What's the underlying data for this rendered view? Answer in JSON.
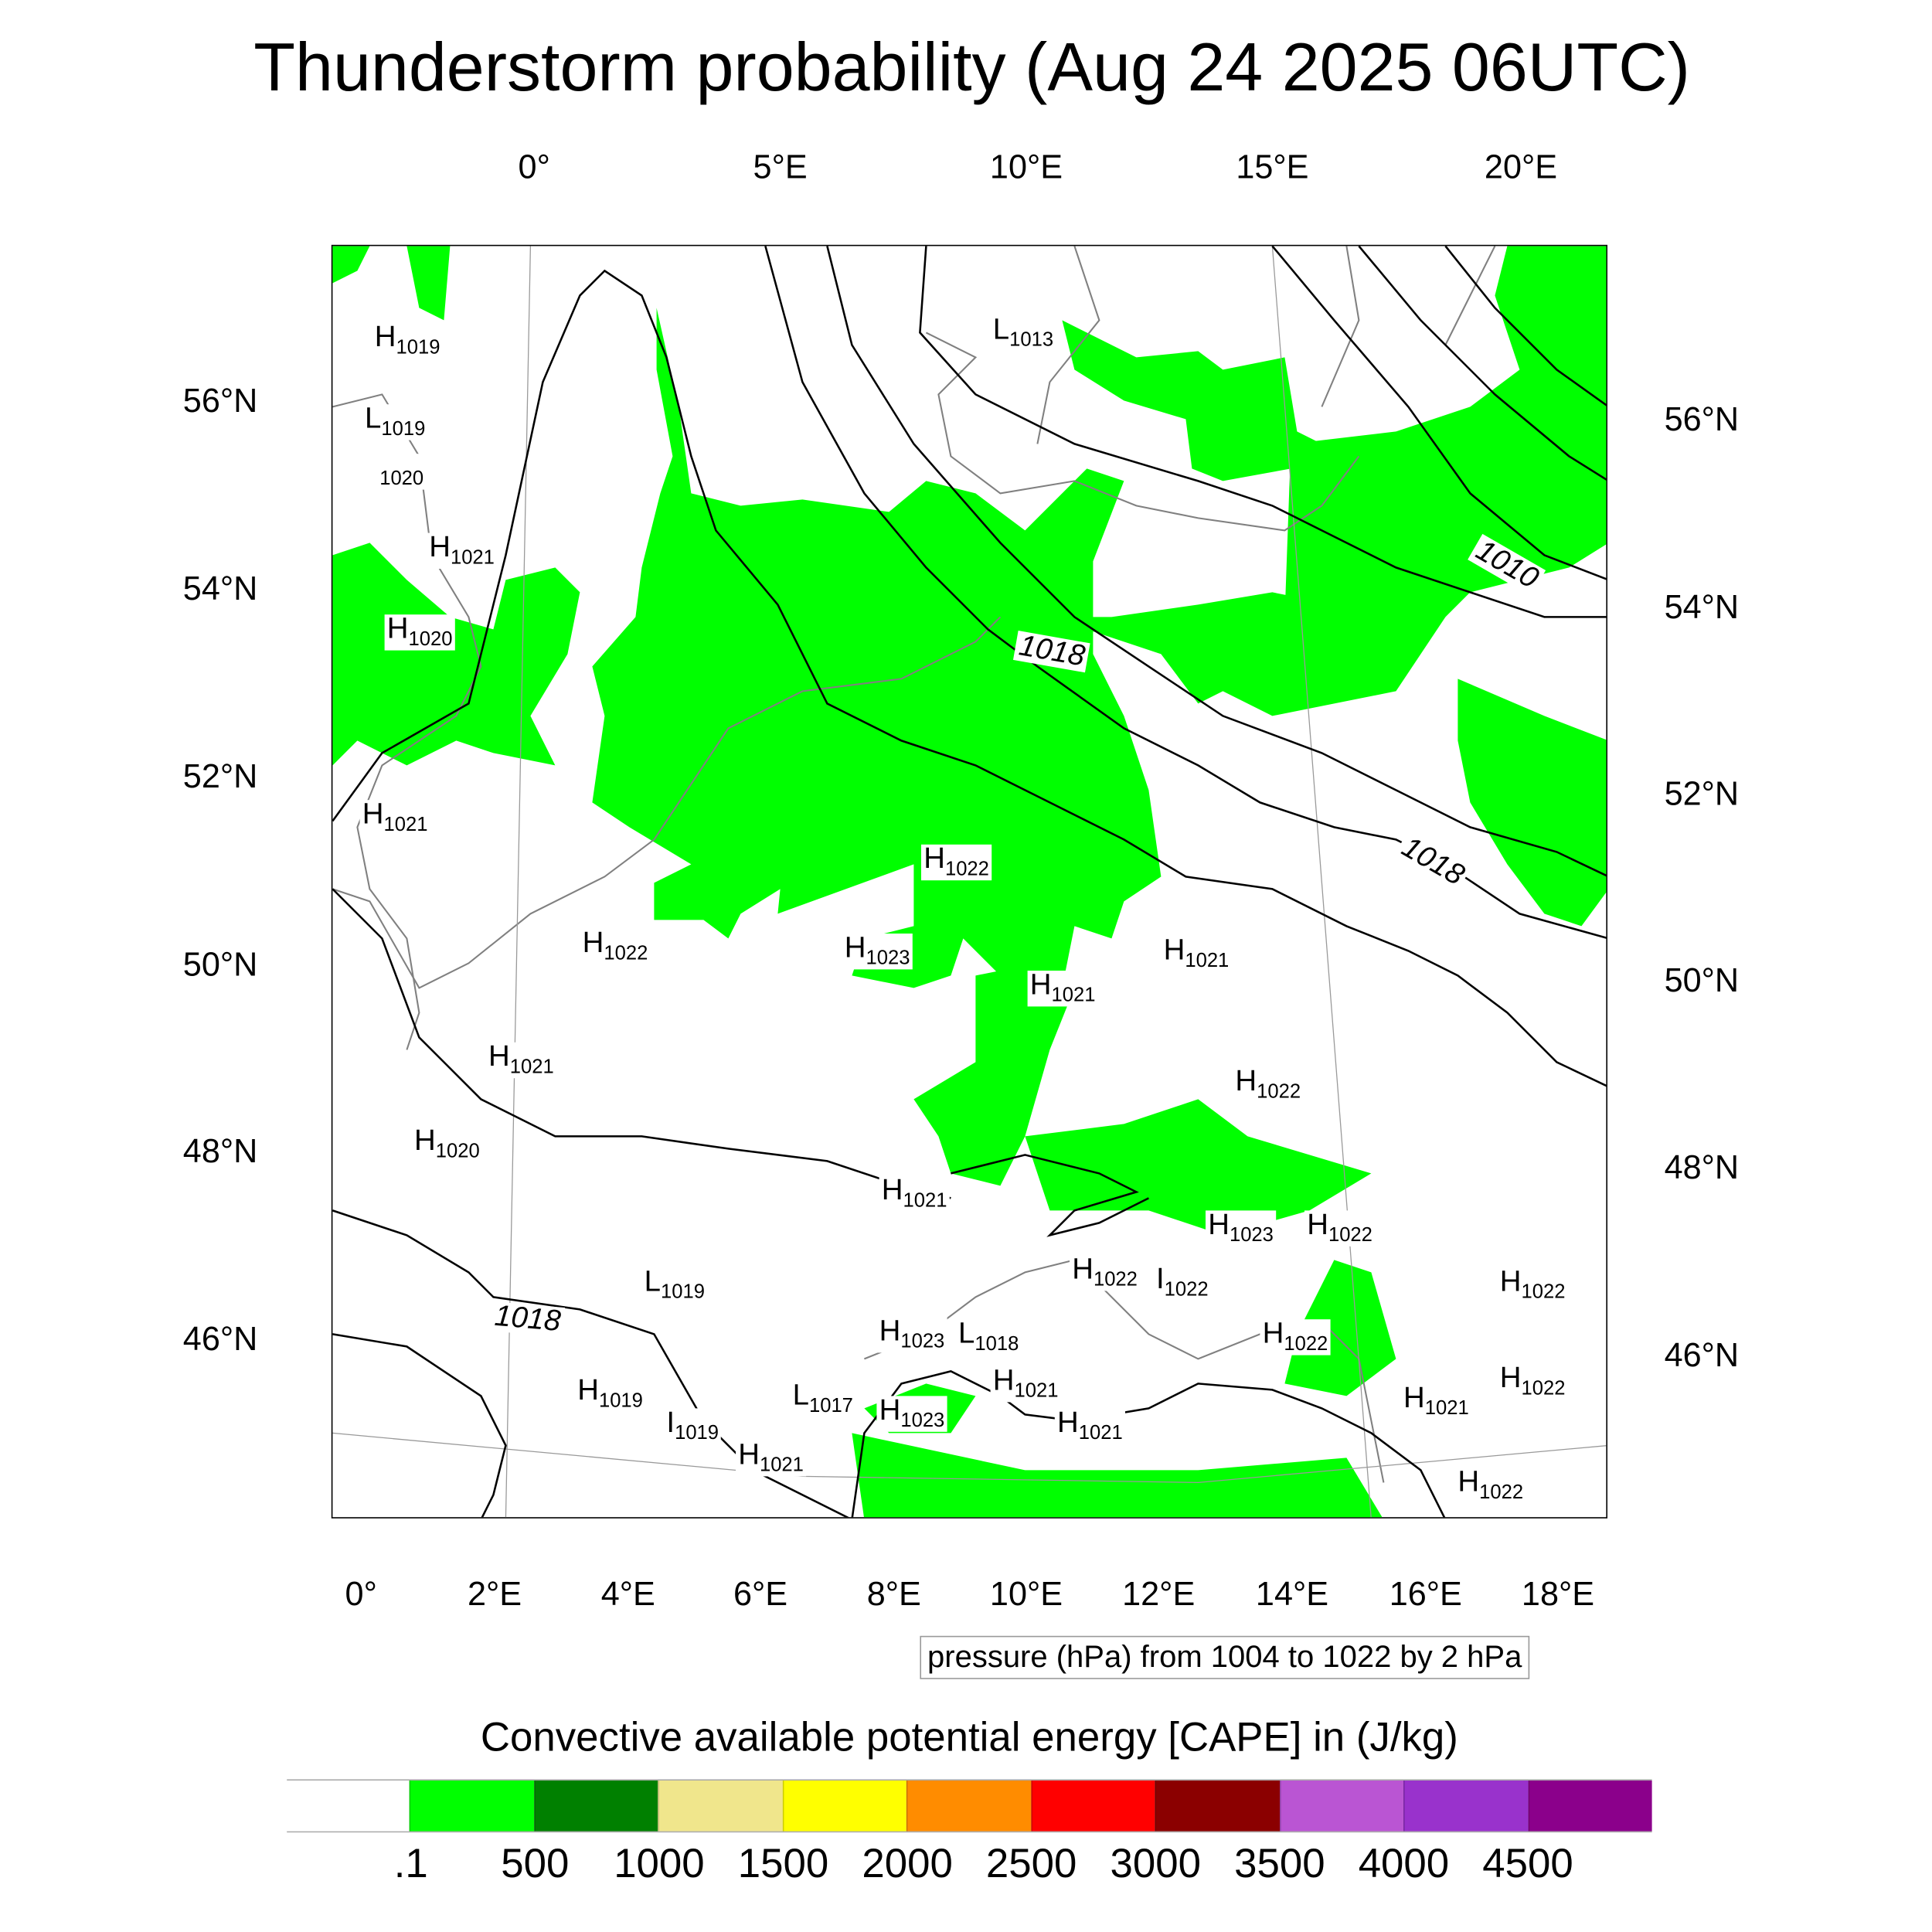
{
  "title": "Thunderstorm probability (Aug 24 2025 06UTC)",
  "top_ticks": [
    "0°",
    "5°E",
    "10°E",
    "15°E",
    "20°E"
  ],
  "left_ticks": [
    "56°N",
    "54°N",
    "52°N",
    "50°N",
    "48°N",
    "46°N"
  ],
  "right_ticks": [
    "56°N",
    "54°N",
    "52°N",
    "50°N",
    "48°N",
    "46°N"
  ],
  "bottom_ticks": [
    "0°",
    "2°E",
    "4°E",
    "6°E",
    "8°E",
    "10°E",
    "12°E",
    "14°E",
    "16°E",
    "18°E"
  ],
  "pressure_centers": [
    {
      "t": "H",
      "v": "1019"
    },
    {
      "t": "L",
      "v": "1013"
    },
    {
      "t": "L",
      "v": "1019"
    },
    {
      "t": "",
      "v": "1020"
    },
    {
      "t": "H",
      "v": "1021"
    },
    {
      "t": "H",
      "v": "1020"
    },
    {
      "t": "H",
      "v": "1021"
    },
    {
      "t": "H",
      "v": "1022"
    },
    {
      "t": "H",
      "v": "1022"
    },
    {
      "t": "H",
      "v": "1023"
    },
    {
      "t": "H",
      "v": "1021"
    },
    {
      "t": "H",
      "v": "1021"
    },
    {
      "t": "H",
      "v": "1021"
    },
    {
      "t": "H",
      "v": "1022"
    },
    {
      "t": "H",
      "v": "1020"
    },
    {
      "t": "H",
      "v": "1021"
    },
    {
      "t": "H",
      "v": "1023"
    },
    {
      "t": "H",
      "v": "1022"
    },
    {
      "t": "L",
      "v": "1019"
    },
    {
      "t": "H",
      "v": "1022"
    },
    {
      "t": "I",
      "v": "1022"
    },
    {
      "t": "H",
      "v": "1023"
    },
    {
      "t": "L",
      "v": "1018"
    },
    {
      "t": "H",
      "v": "1022"
    },
    {
      "t": "H",
      "v": "1021"
    },
    {
      "t": "H",
      "v": "1021"
    },
    {
      "t": "H",
      "v": "1019"
    },
    {
      "t": "I",
      "v": "1019"
    },
    {
      "t": "L",
      "v": "1017"
    },
    {
      "t": "H",
      "v": "1023"
    },
    {
      "t": "H",
      "v": "1021"
    },
    {
      "t": "H",
      "v": "1022"
    },
    {
      "t": "H",
      "v": "1022"
    },
    {
      "t": "H",
      "v": "1021"
    },
    {
      "t": "H",
      "v": "1022"
    }
  ],
  "contour_labels": [
    "1018",
    "1010",
    "1018",
    "1018"
  ],
  "legend_text": "pressure (hPa) from 1004 to 1022 by 2 hPa",
  "colorbar": {
    "title": "Convective available potential energy [CAPE] in (J/kg)",
    "colors": [
      "#ffffff",
      "#00ff00",
      "#008000",
      "#f0e68c",
      "#ffff00",
      "#ff8c00",
      "#ff0000",
      "#8b0000",
      "#ba55d3",
      "#9932cc",
      "#8b008b"
    ],
    "labels": [
      ".1",
      "500",
      "1000",
      "1500",
      "2000",
      "2500",
      "3000",
      "3500",
      "4000",
      "4500"
    ]
  }
}
